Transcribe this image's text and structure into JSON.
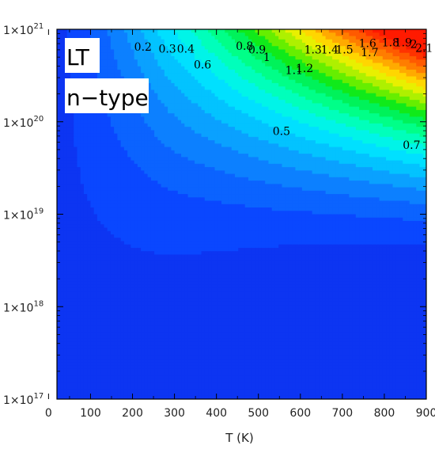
{
  "chart_data": {
    "type": "contour",
    "xlabel": "T (K)",
    "ylabel": "",
    "xlim": [
      20,
      900
    ],
    "ylim_log10": [
      17,
      21
    ],
    "y_scale": "log",
    "x_ticks": [
      "0",
      "100",
      "200",
      "300",
      "400",
      "500",
      "600",
      "700",
      "800",
      "900"
    ],
    "x_tick_values": [
      0,
      100,
      200,
      300,
      400,
      500,
      600,
      700,
      800,
      900
    ],
    "y_ticks": [
      {
        "mantissa": "1×10",
        "exponent": "21",
        "log10": 21
      },
      {
        "mantissa": "1×10",
        "exponent": "20",
        "log10": 20
      },
      {
        "mantissa": "1×10",
        "exponent": "19",
        "log10": 19
      },
      {
        "mantissa": "1×10",
        "exponent": "18",
        "log10": 18
      },
      {
        "mantissa": "1×10",
        "exponent": "17",
        "log10": 17
      }
    ],
    "panel_labels": [
      "LT",
      "n−type"
    ],
    "contour_levels": [
      0.2,
      0.3,
      0.4,
      0.5,
      0.6,
      0.7,
      0.8,
      0.9,
      1.0,
      1.1,
      1.2,
      1.3,
      1.4,
      1.5,
      1.6,
      1.7,
      1.8,
      1.9,
      2.0,
      2.1
    ],
    "contour_labels": [
      {
        "text": "0.2",
        "T": 225,
        "log10n": 20.81
      },
      {
        "text": "0.3",
        "T": 283,
        "log10n": 20.79
      },
      {
        "text": "0.4",
        "T": 327,
        "log10n": 20.79
      },
      {
        "text": "0.8",
        "T": 467,
        "log10n": 20.82
      },
      {
        "text": "0.9",
        "T": 497,
        "log10n": 20.78
      },
      {
        "text": "1",
        "T": 520,
        "log10n": 20.7
      },
      {
        "text": "1.3",
        "T": 630,
        "log10n": 20.78
      },
      {
        "text": "1.4",
        "T": 670,
        "log10n": 20.78
      },
      {
        "text": "1.5",
        "T": 705,
        "log10n": 20.78
      },
      {
        "text": "1.6",
        "T": 760,
        "log10n": 20.85
      },
      {
        "text": "1.8",
        "T": 815,
        "log10n": 20.86
      },
      {
        "text": "1.9",
        "T": 845,
        "log10n": 20.86
      },
      {
        "text": "2",
        "T": 870,
        "log10n": 20.84
      },
      {
        "text": "2.1",
        "T": 895,
        "log10n": 20.8
      },
      {
        "text": "1.7",
        "T": 765,
        "log10n": 20.75
      },
      {
        "text": "0.6",
        "T": 367,
        "log10n": 20.62
      },
      {
        "text": "1.2",
        "T": 610,
        "log10n": 20.58
      },
      {
        "text": "1.1",
        "T": 585,
        "log10n": 20.56
      },
      {
        "text": "0.5",
        "T": 555,
        "log10n": 19.9
      },
      {
        "text": "0.7",
        "T": 865,
        "log10n": 19.75
      }
    ],
    "colormap": [
      "#0d35f2",
      "#0a47ff",
      "#0b63ff",
      "#0c80ff",
      "#0aa1ff",
      "#03c3ff",
      "#00e0ff",
      "#00f4e8",
      "#00ffbb",
      "#00ff88",
      "#00f25a",
      "#10ea1a",
      "#66ee00",
      "#aef000",
      "#e8f000",
      "#ffd600",
      "#ffaa00",
      "#ff7d00",
      "#ff5a00",
      "#ff3300",
      "#ff1a00"
    ],
    "grid": false,
    "legend": "none"
  }
}
